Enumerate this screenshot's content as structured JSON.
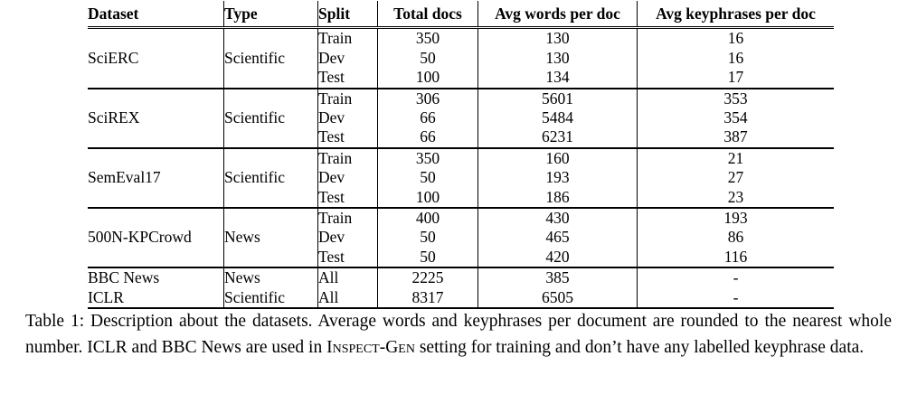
{
  "colors": {
    "text": "#000000",
    "background": "#ffffff"
  },
  "table": {
    "headers": [
      "Dataset",
      "Type",
      "Split",
      "Total docs",
      "Avg words per doc",
      "Avg keyphrases per doc"
    ],
    "groups": [
      {
        "dataset": "SciERC",
        "type": "Scientific",
        "rows": [
          {
            "split": "Train",
            "total_docs": "350",
            "avg_words": "130",
            "avg_keyphrases": "16"
          },
          {
            "split": "Dev",
            "total_docs": "50",
            "avg_words": "130",
            "avg_keyphrases": "16"
          },
          {
            "split": "Test",
            "total_docs": "100",
            "avg_words": "134",
            "avg_keyphrases": "17"
          }
        ]
      },
      {
        "dataset": "SciREX",
        "type": "Scientific",
        "rows": [
          {
            "split": "Train",
            "total_docs": "306",
            "avg_words": "5601",
            "avg_keyphrases": "353"
          },
          {
            "split": "Dev",
            "total_docs": "66",
            "avg_words": "5484",
            "avg_keyphrases": "354"
          },
          {
            "split": "Test",
            "total_docs": "66",
            "avg_words": "6231",
            "avg_keyphrases": "387"
          }
        ]
      },
      {
        "dataset": "SemEval17",
        "type": "Scientific",
        "rows": [
          {
            "split": "Train",
            "total_docs": "350",
            "avg_words": "160",
            "avg_keyphrases": "21"
          },
          {
            "split": "Dev",
            "total_docs": "50",
            "avg_words": "193",
            "avg_keyphrases": "27"
          },
          {
            "split": "Test",
            "total_docs": "100",
            "avg_words": "186",
            "avg_keyphrases": "23"
          }
        ]
      },
      {
        "dataset": "500N-KPCrowd",
        "type": "News",
        "rows": [
          {
            "split": "Train",
            "total_docs": "400",
            "avg_words": "430",
            "avg_keyphrases": "193"
          },
          {
            "split": "Dev",
            "total_docs": "50",
            "avg_words": "465",
            "avg_keyphrases": "86"
          },
          {
            "split": "Test",
            "total_docs": "50",
            "avg_words": "420",
            "avg_keyphrases": "116"
          }
        ]
      }
    ],
    "single_rows": [
      {
        "dataset": "BBC News",
        "type": "News",
        "split": "All",
        "total_docs": "2225",
        "avg_words": "385",
        "avg_keyphrases": "-"
      },
      {
        "dataset": "ICLR",
        "type": "Scientific",
        "split": "All",
        "total_docs": "8317",
        "avg_words": "6505",
        "avg_keyphrases": "-"
      }
    ]
  },
  "caption": {
    "part1": "Table 1: Description about the datasets. Average words and keyphrases per document are rounded to the nearest whole number. ICLR and BBC News are used in ",
    "smallcaps_term": "Inspect-Gen",
    "part2": " setting for training and don’t have any labelled keyphrase data."
  }
}
